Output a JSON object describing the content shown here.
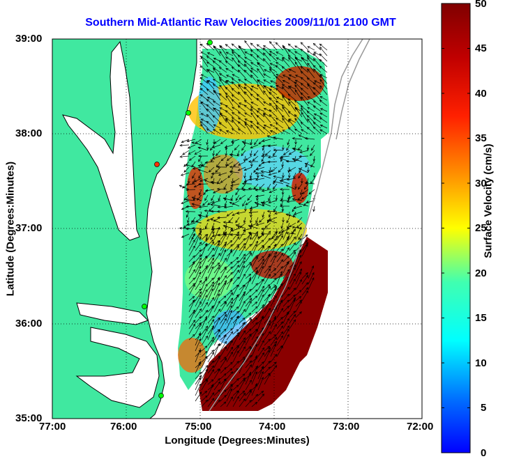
{
  "title": "Southern Mid-Atlantic Raw Velocities 2009/11/01 2100 GMT",
  "xlabel": "Longitude (Degrees:Minutes)",
  "ylabel": "Latitude (Degrees:Minutes)",
  "x_ticks": [
    "77:00",
    "76:00",
    "75:00",
    "74:00",
    "73:00",
    "72:00"
  ],
  "y_ticks": [
    "39:00",
    "38:00",
    "37:00",
    "36:00",
    "35:00"
  ],
  "colorbar": {
    "label": "Surface Velocity (cm/s)",
    "ticks": [
      "50",
      "45",
      "40",
      "35",
      "30",
      "25",
      "20",
      "15",
      "10",
      "5",
      "0"
    ],
    "range": [
      0,
      50
    ]
  },
  "colors": {
    "land": "#40e8a0",
    "ocean": "#ffffff",
    "title": "#0000ff",
    "station": "#00ff00"
  },
  "chart_data": {
    "type": "heatmap",
    "xlim": [
      -77,
      -72
    ],
    "ylim": [
      35,
      39
    ],
    "grid": true
  }
}
